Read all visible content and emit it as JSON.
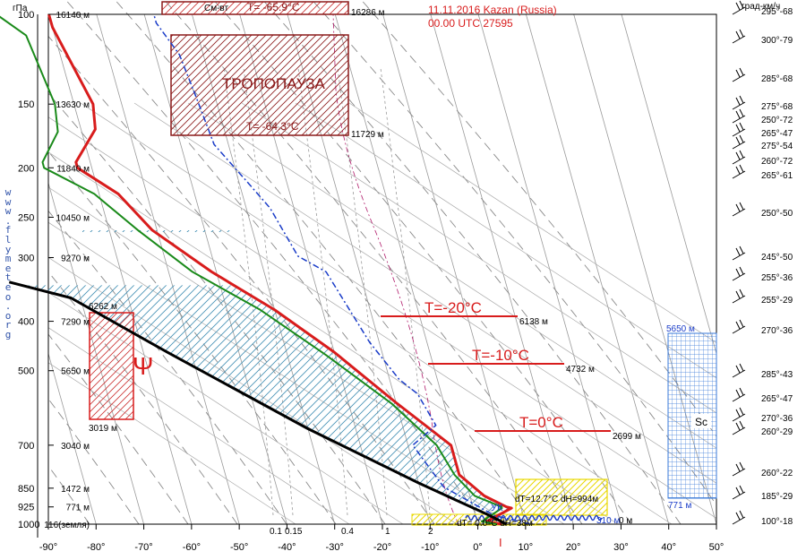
{
  "header": {
    "date_station": "11.11.2016    Kazan (Russia)",
    "time_index": "00.00 UTC    27595"
  },
  "side_link_chars": [
    "w",
    "w",
    "w",
    ".",
    "f",
    "l",
    "y",
    "m",
    "e",
    "t",
    "e",
    "o",
    ".",
    "o",
    "r",
    "g"
  ],
  "units": {
    "pressure": "гПа",
    "wind": "град-км/ч"
  },
  "colors": {
    "temperature": "#d81c1c",
    "dewpoint": "#1a8a1a",
    "parcel": "#000000",
    "wind_profile": "#1a3cc8",
    "cape_hatch": "#3a8ab0",
    "tropopause": "#8b1a1a",
    "cloud_grid": "#3a7ad8",
    "inversion": "#e8d800"
  },
  "chart_data": {
    "type": "line",
    "xlabel": "",
    "ylabel": "гПа",
    "xlim": [
      -90,
      50
    ],
    "ylim": [
      1000,
      100
    ],
    "y_scale": "log",
    "x_ticks": [
      "-90°",
      "-80°",
      "-70°",
      "-60°",
      "-50°",
      "-40°",
      "-30°",
      "-20°",
      "-10°",
      "0°",
      "10°",
      "20°",
      "30°",
      "40°",
      "50°"
    ],
    "pressure_levels": [
      {
        "p": 100,
        "label": "100",
        "height": "16140 м"
      },
      {
        "p": 150,
        "label": "150",
        "height": "13630 м"
      },
      {
        "p": 200,
        "label": "200",
        "height": "11840 м"
      },
      {
        "p": 250,
        "label": "250",
        "height": "10450 м"
      },
      {
        "p": 300,
        "label": "300",
        "height": "9270 м"
      },
      {
        "p": 400,
        "label": "400",
        "height": "7290 м"
      },
      {
        "p": 500,
        "label": "500",
        "height": "5650 м"
      },
      {
        "p": 700,
        "label": "700",
        "height": "3040 м"
      },
      {
        "p": 850,
        "label": "850",
        "height": "1472 м"
      },
      {
        "p": 925,
        "label": "925",
        "height": "771 м"
      },
      {
        "p": 1000,
        "label": "1000",
        "height": "116(земля)"
      }
    ],
    "series": [
      {
        "key": "temperature",
        "points": [
          [
            5,
            1000
          ],
          [
            2,
            988
          ],
          [
            8,
            930
          ],
          [
            7,
            925
          ],
          [
            3,
            880
          ],
          [
            -1,
            800
          ],
          [
            -1,
            700
          ],
          [
            -10,
            578
          ],
          [
            -20,
            460
          ],
          [
            -30,
            380
          ],
          [
            -41,
            320
          ],
          [
            -51,
            265
          ],
          [
            -56,
            225
          ],
          [
            -63,
            200
          ],
          [
            -63,
            195
          ],
          [
            -57,
            168
          ],
          [
            -56,
            150
          ],
          [
            -60,
            106
          ],
          [
            -60,
            100
          ]
        ]
      },
      {
        "key": "dewpoint",
        "points": [
          [
            4,
            1000
          ],
          [
            1,
            988
          ],
          [
            6,
            930
          ],
          [
            6,
            925
          ],
          [
            1,
            880
          ],
          [
            -2,
            800
          ],
          [
            -4,
            700
          ],
          [
            -11,
            580
          ],
          [
            -22,
            465
          ],
          [
            -33,
            380
          ],
          [
            -45,
            320
          ],
          [
            -54,
            265
          ],
          [
            -61,
            225
          ],
          [
            -70,
            200
          ],
          [
            -70,
            195
          ],
          [
            -65,
            170
          ],
          [
            -64,
            150
          ],
          [
            -66,
            110
          ],
          [
            -71,
            100
          ]
        ]
      },
      {
        "key": "parcel",
        "points": [
          [
            6,
            1000
          ],
          [
            3,
            962
          ],
          [
            -10,
            830
          ],
          [
            -30,
            650
          ],
          [
            -55,
            460
          ],
          [
            -72,
            360
          ],
          [
            -84,
            335
          ]
        ]
      },
      {
        "key": "wind_profile",
        "points": [
          [
            11,
            1000
          ],
          [
            4,
            962
          ],
          [
            -5,
            845
          ],
          [
            -9,
            700
          ],
          [
            -3,
            640
          ],
          [
            -5,
            555
          ],
          [
            -8,
            520
          ],
          [
            -12,
            440
          ],
          [
            -17,
            320
          ],
          [
            -22,
            298
          ],
          [
            -25,
            240
          ],
          [
            -28,
            215
          ],
          [
            -33,
            180
          ],
          [
            -34,
            145
          ],
          [
            -35,
            120
          ],
          [
            -38,
            104
          ],
          [
            -38,
            100
          ]
        ]
      }
    ],
    "isotherm_labels": [
      {
        "text": "T=-20°C",
        "height": "6138 м"
      },
      {
        "text": "T=-10°C",
        "height": "4732 м"
      },
      {
        "text": "T=0°C",
        "height": "2699 м"
      }
    ],
    "mixing_ratio_labels": [
      "0.1",
      "0.15",
      "0.4",
      "1",
      "2"
    ],
    "wind_barbs": [
      "295°-68",
      "300°-79",
      "285°-68",
      "275°-68",
      "250°-72",
      "265°-47",
      "275°-54",
      "260°-72",
      "265°-61",
      "250°-50",
      "245°-50",
      "255°-36",
      "255°-29",
      "270°-36",
      "285°-43",
      "265°-47",
      "270°-36",
      "260°-29",
      "260°-22",
      "185°-29",
      "100°-18"
    ]
  },
  "annotations": {
    "tropopause_label": "ТРОПОПАУЗА",
    "tropo_top_temp": "T= -65.9°C",
    "tropo_top_height": "16286 м",
    "tropo_top_prefix": "См-вт",
    "tropo_bottom_temp": "T= -64.3°C",
    "tropo_bottom_height": "11729 м",
    "convection_top": "6262 м",
    "convection_bottom": "3019 м",
    "psi_symbol": "Ψ",
    "cloud_top": "5650 м",
    "cloud_bottom": "771 м",
    "cloud_type": "Sc",
    "inversion_upper": "dT=12.7°C dH=994м",
    "inversion_lower": "dT= 0.0°C dH=38м",
    "uk_label": "УК",
    "surface_height": "310 м",
    "surface_zero": "0 м",
    "surface_marker": "I"
  }
}
